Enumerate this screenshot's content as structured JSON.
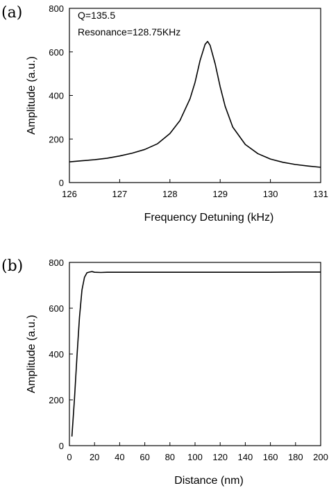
{
  "chart_data": [
    {
      "panel_label": "(a)",
      "type": "line",
      "xlabel": "Frequency Detuning (kHz)",
      "ylabel": "Amplitude (a.u.)",
      "xlim": [
        126,
        131
      ],
      "ylim": [
        0,
        800
      ],
      "xticks": [
        "126",
        "127",
        "128",
        "129",
        "130",
        "131"
      ],
      "yticks": [
        "0",
        "200",
        "400",
        "600",
        "800"
      ],
      "annotations": [
        "Q=135.5",
        "Resonance=128.75KHz"
      ],
      "grid": false,
      "series": [
        {
          "x": [
            126.0,
            126.25,
            126.5,
            126.75,
            127.0,
            127.25,
            127.5,
            127.75,
            128.0,
            128.2,
            128.4,
            128.5,
            128.6,
            128.7,
            128.75,
            128.8,
            128.9,
            129.0,
            129.1,
            129.25,
            129.5,
            129.75,
            130.0,
            130.25,
            130.5,
            130.75,
            131.0
          ],
          "y": [
            95,
            100,
            105,
            112,
            122,
            135,
            152,
            178,
            225,
            285,
            385,
            460,
            560,
            635,
            648,
            630,
            545,
            440,
            350,
            255,
            175,
            133,
            108,
            93,
            83,
            76,
            70
          ]
        }
      ]
    },
    {
      "panel_label": "(b)",
      "type": "line",
      "xlabel": "Distance (nm)",
      "ylabel": "Amplitude (a.u.)",
      "xlim": [
        0,
        200
      ],
      "ylim": [
        0,
        800
      ],
      "xticks": [
        "0",
        "20",
        "40",
        "60",
        "80",
        "100",
        "120",
        "140",
        "160",
        "180",
        "200"
      ],
      "yticks": [
        "0",
        "200",
        "400",
        "600",
        "800"
      ],
      "grid": false,
      "series": [
        {
          "x": [
            2,
            4,
            6,
            8,
            10,
            12,
            14,
            16,
            18,
            20,
            25,
            30,
            40,
            60,
            80,
            100,
            120,
            140,
            160,
            180,
            200
          ],
          "y": [
            40,
            200,
            390,
            560,
            680,
            735,
            755,
            758,
            760,
            757,
            756,
            757,
            757,
            757,
            757,
            757,
            757,
            757,
            757,
            758,
            758
          ]
        }
      ]
    }
  ]
}
